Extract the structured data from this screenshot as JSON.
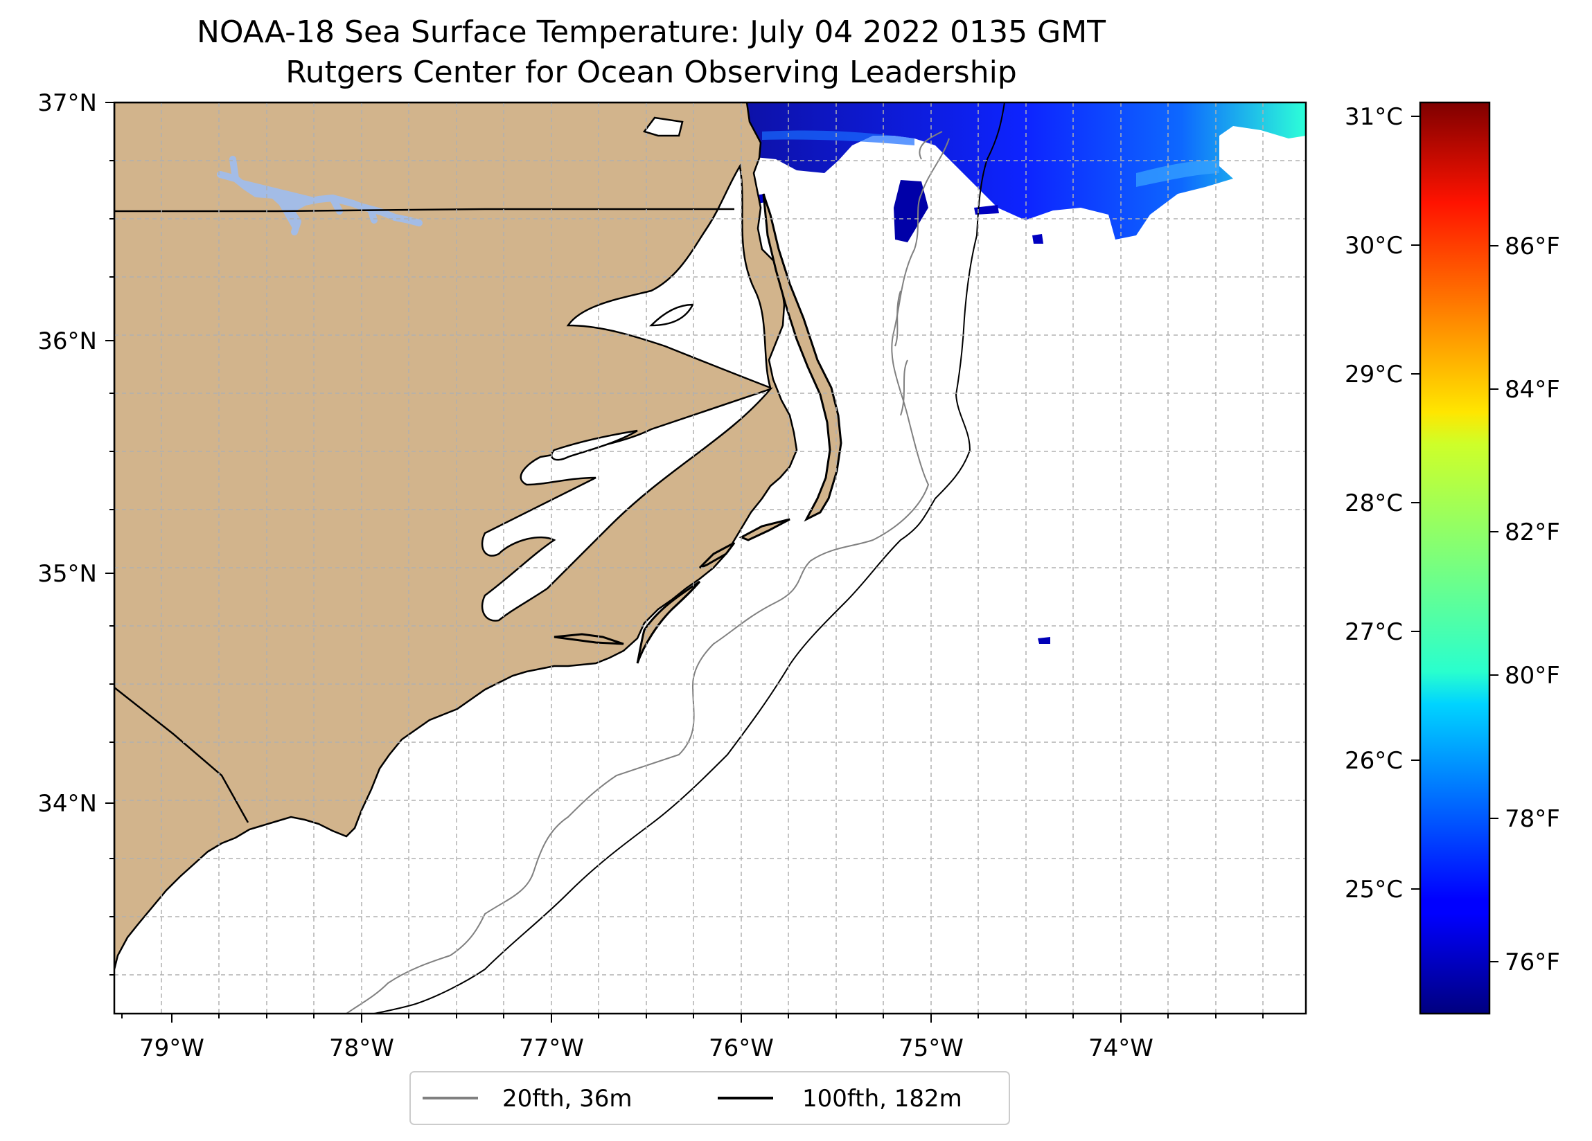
{
  "title": {
    "line1": "NOAA-18 Sea Surface Temperature: July 04 2022 0135 GMT",
    "line2": "Rutgers Center for Ocean Observing Leadership"
  },
  "map": {
    "region": "North Carolina coast",
    "lon_range": [
      -79.3,
      -73.05
    ],
    "lat_range": [
      33.1,
      37.0
    ],
    "land_color": "#d2b48c",
    "lake_color": "#a3bce6",
    "gridlines": "dashed",
    "lat_ticks": [
      "37°N",
      "36°N",
      "35°N",
      "34°N"
    ],
    "lon_ticks": [
      "79°W",
      "78°W",
      "77°W",
      "76°W",
      "75°W",
      "74°W"
    ]
  },
  "colorbar": {
    "colormap": "jet",
    "celsius_ticks": [
      "31°C",
      "30°C",
      "29°C",
      "28°C",
      "27°C",
      "26°C",
      "25°C"
    ],
    "fahrenheit_ticks": [
      "86°F",
      "84°F",
      "82°F",
      "80°F",
      "78°F",
      "76°F"
    ],
    "range_c": [
      24.1,
      31.1
    ]
  },
  "legend": {
    "placement": "bottom-center",
    "items": [
      {
        "label": "20fth, 36m",
        "color": "#808080"
      },
      {
        "label": "100fth, 182m",
        "color": "#000000"
      }
    ]
  }
}
